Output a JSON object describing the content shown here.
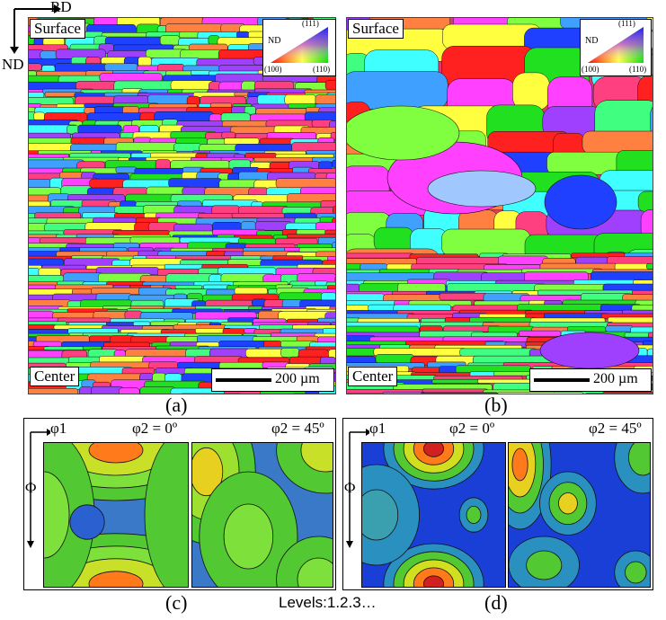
{
  "axes_top": {
    "rd": "RD",
    "nd": "ND"
  },
  "panel_a": {
    "surface": "Surface",
    "center": "Center",
    "scale": "200 µm",
    "ipf": {
      "nd": "ND",
      "c111": "(111)",
      "c100": "(100)",
      "c110": "(110)"
    },
    "caption": "(a)"
  },
  "panel_b": {
    "surface": "Surface",
    "center": "Center",
    "scale": "200 µm",
    "ipf": {
      "nd": "ND",
      "c111": "(111)",
      "c100": "(100)",
      "c110": "(110)"
    },
    "caption": "(b)"
  },
  "panel_c": {
    "phi1": "φ1",
    "phi2_0": "φ2 = 0º",
    "phi2_45": "φ2 = 45º",
    "Phi": "Φ",
    "caption": "(c)"
  },
  "panel_d": {
    "phi1": "φ1",
    "phi2_0": "φ2 = 0º",
    "phi2_45": "φ2 = 45º",
    "Phi": "Φ",
    "caption": "(d)"
  },
  "levels": "Levels:1.2.3…",
  "colors": {
    "ipf": [
      "#ff2020",
      "#20e020",
      "#2040ff",
      "#ff40ff",
      "#40ffff",
      "#ffff40",
      "#ff8040",
      "#80ff40",
      "#a040ff",
      "#40a0ff",
      "#ff4080",
      "#40ff80"
    ],
    "odf_low": "#1a3fd6",
    "odf_mid": "#52c832",
    "odf_high": "#ff7a1a"
  }
}
